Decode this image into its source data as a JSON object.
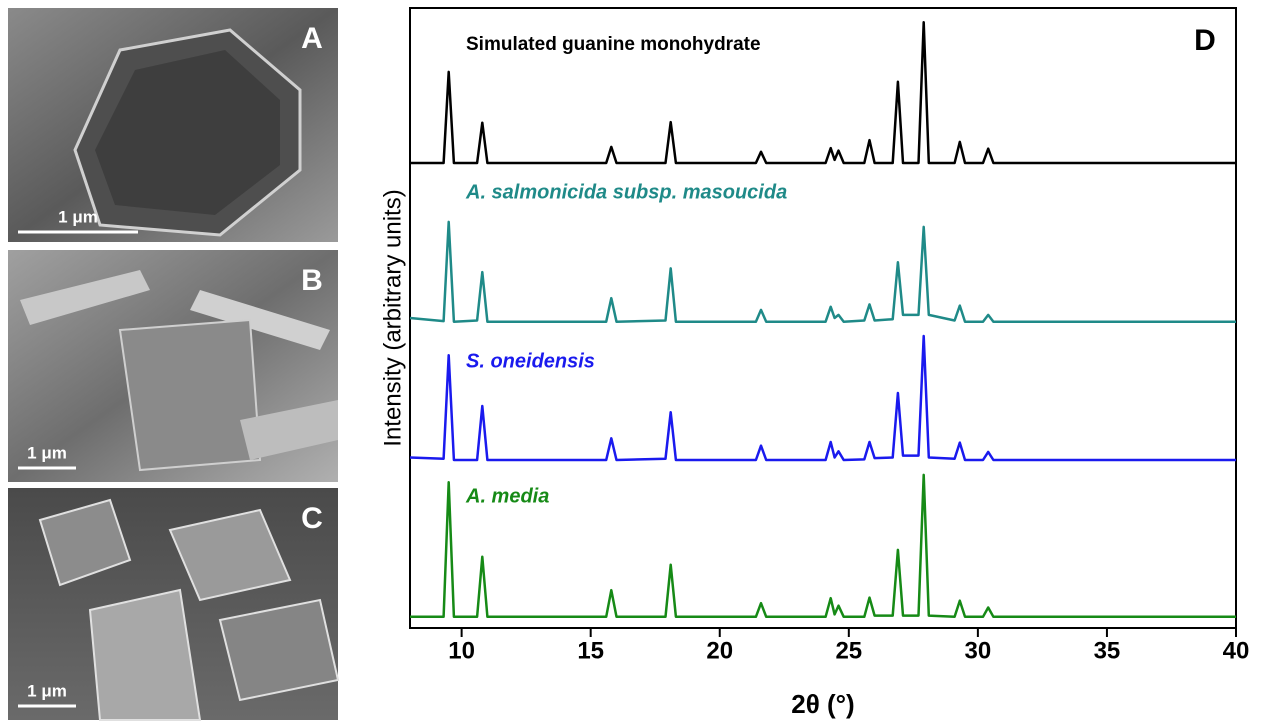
{
  "panels": [
    {
      "label": "A",
      "scale_bar": "1 μm"
    },
    {
      "label": "B",
      "scale_bar": "1 μm"
    },
    {
      "label": "C",
      "scale_bar": "1 μm"
    }
  ],
  "chart_data": {
    "type": "line",
    "panel_label": "D",
    "x_label": "2θ (°)",
    "y_label": "Intensity (arbitrary units)",
    "x": [
      8,
      9.3,
      9.5,
      9.7,
      10.6,
      10.8,
      11.0,
      15.6,
      15.8,
      16.0,
      17.9,
      18.1,
      18.3,
      21.4,
      21.6,
      21.8,
      24.1,
      24.3,
      24.45,
      24.6,
      24.8,
      25.6,
      25.8,
      26.0,
      26.7,
      26.9,
      27.1,
      27.7,
      27.9,
      28.1,
      29.1,
      29.3,
      29.5,
      30.2,
      30.4,
      30.6,
      40
    ],
    "xlim": [
      8,
      40
    ],
    "xticks": [
      10,
      15,
      20,
      25,
      30,
      35,
      40
    ],
    "ylim": [
      0,
      100
    ],
    "series": [
      {
        "name": "Simulated guanine monohydrate",
        "color": "#000000",
        "values": [
          75,
          75,
          89.7,
          75,
          75,
          81.5,
          75,
          75,
          77.6,
          75,
          75,
          81.6,
          75,
          75,
          76.8,
          75,
          75,
          77.4,
          75.5,
          77.0,
          75,
          75,
          78.7,
          75,
          75,
          88.1,
          75,
          75,
          97.7,
          75,
          75,
          78.4,
          75,
          75,
          77.3,
          75,
          75
        ]
      },
      {
        "name": "A. salmonicida subsp. masoucida",
        "color": "#1f8a88",
        "values": [
          50,
          49.5,
          65.5,
          49.4,
          49.6,
          57.4,
          49.4,
          49.4,
          53.2,
          49.4,
          49.6,
          58,
          49.4,
          49.4,
          51.3,
          49.4,
          49.4,
          51.8,
          50,
          50.5,
          49.4,
          49.6,
          52.2,
          49.6,
          49.8,
          59,
          50.5,
          50.5,
          64.7,
          50.5,
          49.6,
          52.0,
          49.4,
          49.4,
          50.5,
          49.4,
          49.4
        ]
      },
      {
        "name": "S. oneidensis",
        "color": "#1a1aee",
        "values": [
          27.5,
          27.3,
          44,
          27.1,
          27.1,
          35.8,
          27.1,
          27.1,
          30.6,
          27.1,
          27.3,
          34.8,
          27.1,
          27.1,
          29.4,
          27.1,
          27.1,
          30,
          27.5,
          28.5,
          27.1,
          27.2,
          30,
          27.4,
          27.5,
          37.9,
          27.8,
          27.8,
          47.1,
          27.5,
          27.3,
          29.9,
          27.1,
          27.1,
          28.4,
          27.1,
          27.1
        ]
      },
      {
        "name": "A. media",
        "color": "#168a16",
        "values": [
          1.8,
          1.8,
          23.5,
          1.8,
          1.8,
          11.5,
          1.8,
          1.8,
          6.1,
          1.8,
          1.8,
          10.2,
          1.8,
          1.8,
          4.0,
          1.8,
          1.8,
          4.8,
          2.2,
          3.6,
          1.8,
          1.8,
          4.9,
          2.0,
          2.0,
          12.6,
          2.0,
          2.0,
          24.7,
          2.0,
          1.8,
          4.4,
          1.8,
          1.8,
          3.3,
          1.8,
          1.8
        ]
      }
    ]
  }
}
